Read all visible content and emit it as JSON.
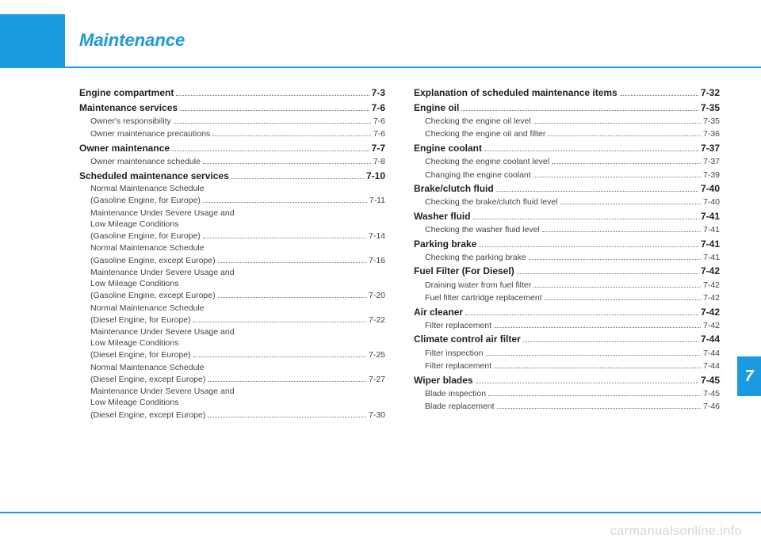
{
  "title": "Maintenance",
  "chapter_tab": "7",
  "watermark": "carmanualsonline.info",
  "colors": {
    "accent": "#1a9ae0",
    "text": "#2b2b2b",
    "watermark": "#d6d6d6"
  },
  "left_column": [
    {
      "level": 0,
      "label": "Engine compartment",
      "page": "7-3"
    },
    {
      "level": 0,
      "label": "Maintenance services",
      "page": "7-6"
    },
    {
      "level": 1,
      "label": "Owner's responsibility",
      "page": "7-6"
    },
    {
      "level": 1,
      "label": "Owner maintenance precautions",
      "page": "7-6"
    },
    {
      "level": 0,
      "label": "Owner maintenance",
      "page": "7-7"
    },
    {
      "level": 1,
      "label": "Owner maintenance schedule",
      "page": "7-8"
    },
    {
      "level": 0,
      "label": "Scheduled maintenance services",
      "page": "7-10"
    },
    {
      "level": 1,
      "label": "Normal Maintenance Schedule\n(Gasoline Engine, for Europe)",
      "page": "7-11"
    },
    {
      "level": 1,
      "label": "Maintenance Under Severe Usage and\nLow Mileage Conditions\n(Gasoline Engine, for Europe)",
      "page": "7-14"
    },
    {
      "level": 1,
      "label": "Normal Maintenance Schedule\n(Gasoline Engine, except Europe)",
      "page": "7-16"
    },
    {
      "level": 1,
      "label": "Maintenance Under Severe Usage and\nLow Mileage Conditions\n(Gasoline Engine, except Europe)",
      "page": "7-20"
    },
    {
      "level": 1,
      "label": "Normal Maintenance Schedule\n(Diesel Engine, for Europe)",
      "page": "7-22"
    },
    {
      "level": 1,
      "label": "Maintenance Under Severe Usage and\nLow Mileage Conditions\n(Diesel Engine, for Europe)",
      "page": "7-25"
    },
    {
      "level": 1,
      "label": "Normal Maintenance Schedule\n(Diesel Engine, except Europe)",
      "page": "7-27"
    },
    {
      "level": 1,
      "label": "Maintenance Under Severe Usage and\nLow Mileage Conditions\n(Diesel Engine, except Europe)",
      "page": "7-30"
    }
  ],
  "right_column": [
    {
      "level": 0,
      "label": "Explanation of scheduled maintenance items",
      "page": "7-32"
    },
    {
      "level": 0,
      "label": "Engine oil",
      "page": "7-35"
    },
    {
      "level": 1,
      "label": "Checking the engine oil level",
      "page": "7-35"
    },
    {
      "level": 1,
      "label": "Checking the engine oil and filter",
      "page": "7-36"
    },
    {
      "level": 0,
      "label": "Engine coolant",
      "page": "7-37"
    },
    {
      "level": 1,
      "label": "Checking the engine coolant level",
      "page": "7-37"
    },
    {
      "level": 1,
      "label": "Changing the engine coolant",
      "page": "7-39"
    },
    {
      "level": 0,
      "label": "Brake/clutch fluid",
      "page": "7-40"
    },
    {
      "level": 1,
      "label": "Checking the brake/clutch fluid level",
      "page": "7-40"
    },
    {
      "level": 0,
      "label": "Washer fluid",
      "page": "7-41"
    },
    {
      "level": 1,
      "label": "Checking the washer fluid level",
      "page": "7-41"
    },
    {
      "level": 0,
      "label": "Parking brake",
      "page": "7-41"
    },
    {
      "level": 1,
      "label": "Checking the parking brake",
      "page": "7-41"
    },
    {
      "level": 0,
      "label": "Fuel Filter (For Diesel)",
      "page": "7-42"
    },
    {
      "level": 1,
      "label": "Draining water from fuel filter",
      "page": "7-42"
    },
    {
      "level": 1,
      "label": "Fuel filter cartridge replacement",
      "page": "7-42"
    },
    {
      "level": 0,
      "label": "Air cleaner",
      "page": "7-42"
    },
    {
      "level": 1,
      "label": "Filter replacement",
      "page": "7-42"
    },
    {
      "level": 0,
      "label": "Climate control air filter",
      "page": "7-44"
    },
    {
      "level": 1,
      "label": "Filter inspection",
      "page": "7-44"
    },
    {
      "level": 1,
      "label": "Filter replacement",
      "page": "7-44"
    },
    {
      "level": 0,
      "label": "Wiper blades",
      "page": "7-45"
    },
    {
      "level": 1,
      "label": "Blade inspection",
      "page": "7-45"
    },
    {
      "level": 1,
      "label": "Blade replacement",
      "page": "7-46"
    }
  ]
}
